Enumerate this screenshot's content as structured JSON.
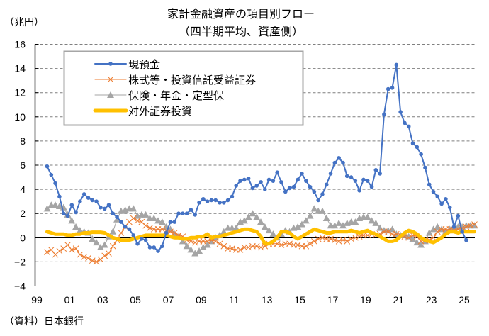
{
  "chart_data": {
    "type": "line",
    "title": "家計金融資産の項目別フロー",
    "subtitle": "（四半期平均、資産側）",
    "ylabel": "（兆円）",
    "xlabel": "",
    "source": "（資料）日本銀行",
    "ylim": [
      -4,
      16
    ],
    "yticks": [
      -4,
      -2,
      0,
      2,
      4,
      6,
      8,
      10,
      12,
      14,
      16
    ],
    "ytick_labels": [
      "−4",
      "−2",
      "0",
      "2",
      "4",
      "6",
      "8",
      "10",
      "12",
      "14",
      "16"
    ],
    "xlim": [
      1999,
      2026
    ],
    "xticks": [
      1999,
      2001,
      2003,
      2005,
      2007,
      2009,
      2011,
      2013,
      2015,
      2017,
      2019,
      2021,
      2023,
      2025
    ],
    "xtick_labels": [
      "99",
      "01",
      "03",
      "05",
      "07",
      "09",
      "11",
      "13",
      "15",
      "17",
      "19",
      "21",
      "23",
      "25"
    ],
    "grid": "horizontal-dashed",
    "legend_position": "top-left",
    "x_start": 1999.625,
    "x_step": 0.25,
    "series": [
      {
        "name": "現預金",
        "color": "#4472C4",
        "marker": "circle",
        "values": [
          5.9,
          5.2,
          4.5,
          3.4,
          2.0,
          1.8,
          2.7,
          2.1,
          3.0,
          3.6,
          3.3,
          3.1,
          3.0,
          2.5,
          2.4,
          2.7,
          2.0,
          1.7,
          1.3,
          0.9,
          0.7,
          0.2,
          -0.5,
          -0.1,
          -0.2,
          -0.8,
          -0.8,
          -1.1,
          -0.7,
          0.4,
          1.3,
          1.3,
          2.0,
          2.0,
          2.0,
          2.3,
          1.9,
          2.9,
          3.2,
          3.0,
          3.1,
          3.1,
          2.9,
          2.9,
          3.1,
          3.4,
          4.3,
          4.7,
          4.8,
          4.9,
          4.1,
          4.3,
          4.6,
          4.0,
          4.8,
          4.7,
          5.4,
          4.6,
          3.8,
          4.1,
          4.2,
          4.8,
          5.3,
          4.7,
          4.2,
          3.8,
          3.1,
          3.6,
          4.4,
          5.3,
          6.2,
          6.6,
          6.2,
          5.1,
          5.0,
          4.7,
          3.9,
          4.8,
          4.7,
          4.2,
          5.6,
          5.3,
          10.2,
          12.3,
          12.4,
          14.3,
          10.4,
          9.5,
          9.2,
          7.8,
          7.5,
          6.9,
          5.8,
          4.4,
          3.8,
          3.4,
          2.8,
          3.2,
          2.5,
          0.9,
          1.8,
          0.5,
          -0.2
        ]
      },
      {
        "name": "株式等・投資信託受益証券",
        "color": "#ED7D31",
        "marker": "x",
        "values": [
          -1.2,
          -1.0,
          -1.4,
          -1.1,
          -0.9,
          -0.6,
          -1.0,
          -0.9,
          -1.4,
          -1.6,
          -1.7,
          -1.9,
          -2.0,
          -1.8,
          -1.5,
          -1.3,
          -0.7,
          -0.2,
          0.4,
          0.9,
          1.3,
          1.6,
          1.4,
          1.3,
          1.0,
          0.8,
          0.7,
          0.7,
          0.7,
          0.6,
          0.5,
          0.4,
          0.2,
          0.1,
          -0.2,
          -0.3,
          -0.4,
          -0.3,
          -0.3,
          -0.3,
          -0.2,
          -0.3,
          -0.5,
          -0.7,
          -0.9,
          -0.9,
          -1.0,
          -1.0,
          -0.8,
          -0.8,
          -0.7,
          -0.7,
          -0.8,
          -0.7,
          -0.5,
          -0.5,
          -0.5,
          -0.6,
          -0.5,
          -0.5,
          -0.6,
          -0.6,
          -0.7,
          -0.7,
          -0.5,
          -0.3,
          -0.1,
          0.0,
          -0.1,
          -0.1,
          -0.2,
          -0.3,
          -0.2,
          -0.3,
          -0.1,
          0.0,
          0.1,
          0.2,
          0.2,
          0.3,
          0.2,
          0.3,
          0.5,
          0.5,
          0.3,
          0.3,
          0.2,
          0.1,
          0.0,
          0.2,
          0.1,
          -0.3,
          -0.2,
          -0.2,
          0.0,
          0.5,
          0.7,
          0.7,
          0.7,
          0.6,
          0.7,
          0.8,
          0.9,
          1.0,
          1.1
        ]
      },
      {
        "name": "保険・年金・定型保",
        "color": "#A5A5A5",
        "marker": "triangle",
        "values": [
          2.4,
          2.7,
          2.7,
          2.6,
          2.5,
          1.9,
          1.4,
          0.9,
          0.6,
          0.5,
          0.4,
          -0.1,
          -0.4,
          -0.8,
          -0.6,
          0.1,
          0.5,
          1.5,
          2.2,
          2.3,
          2.4,
          2.4,
          1.8,
          1.9,
          1.9,
          1.6,
          1.6,
          1.4,
          1.3,
          0.9,
          0.7,
          0.3,
          0.1,
          -0.3,
          -0.7,
          -1.0,
          -1.3,
          -1.1,
          -0.8,
          -0.6,
          -0.3,
          0.0,
          0.2,
          0.5,
          0.8,
          0.8,
          0.8,
          1.3,
          1.4,
          1.7,
          2.0,
          1.7,
          1.3,
          0.9,
          0.6,
          0.3,
          0.0,
          0.3,
          0.6,
          0.5,
          0.8,
          0.9,
          1.1,
          1.4,
          1.8,
          2.4,
          2.2,
          2.2,
          1.6,
          1.0,
          1.0,
          1.2,
          1.0,
          1.2,
          1.3,
          1.3,
          1.6,
          1.7,
          1.7,
          1.4,
          1.2,
          0.8,
          0.6,
          0.6,
          0.7,
          0.3,
          0.2,
          0.2,
          0.1,
          -0.1,
          -0.4,
          -0.6,
          -0.3,
          0.4,
          0.7,
          0.9,
          0.7,
          0.5,
          0.7,
          0.8,
          0.9,
          0.9,
          1.0,
          1.0,
          1.0
        ]
      },
      {
        "name": "対外証券投資",
        "color": "#FFC000",
        "marker": "none",
        "values": [
          0.5,
          0.4,
          0.3,
          0.3,
          0.3,
          0.2,
          0.2,
          0.3,
          0.3,
          0.4,
          0.4,
          0.45,
          0.45,
          0.45,
          0.4,
          0.2,
          0.0,
          -0.1,
          -0.2,
          -0.2,
          -0.2,
          -0.1,
          0.0,
          0.1,
          0.2,
          0.2,
          0.2,
          0.2,
          0.2,
          0.2,
          0.1,
          0.0,
          0.0,
          -0.1,
          -0.1,
          0.0,
          0.0,
          0.1,
          0.1,
          0.3,
          0.0,
          0.1,
          0.1,
          0.2,
          0.3,
          0.4,
          0.5,
          0.6,
          0.7,
          0.7,
          0.6,
          0.5,
          0.1,
          -0.5,
          -0.5,
          -0.3,
          0.0,
          0.5,
          0.5,
          0.4,
          0.1,
          -0.1,
          0.1,
          0.3,
          0.5,
          0.7,
          0.6,
          0.5,
          0.4,
          0.4,
          0.5,
          0.5,
          0.5,
          0.5,
          0.6,
          0.5,
          0.4,
          0.5,
          0.6,
          0.4,
          0.3,
          0.1,
          -0.1,
          -0.3,
          -0.3,
          -0.2,
          0.1,
          0.4,
          0.6,
          0.5,
          0.3,
          0.0,
          -0.2,
          -0.3,
          -0.4,
          -0.2,
          0.0,
          0.3,
          0.5,
          0.5,
          0.4,
          0.5,
          0.5,
          0.5,
          0.5
        ]
      }
    ]
  }
}
